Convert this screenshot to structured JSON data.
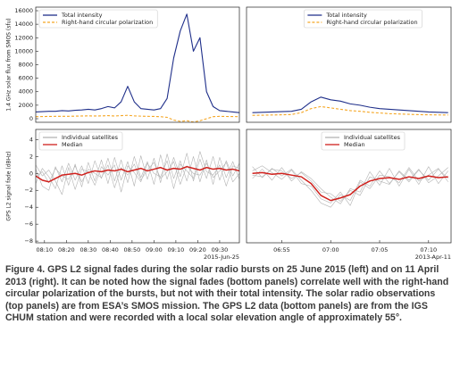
{
  "chart_data": [
    {
      "type": "line",
      "ylabel": "1.4 GHz solar flux from SMOS (sfu)",
      "x": [
        486,
        489,
        492,
        495,
        498,
        501,
        504,
        507,
        510,
        513,
        516,
        519,
        522,
        525,
        528,
        531,
        534,
        537,
        540,
        543,
        546,
        549,
        552,
        555,
        558,
        561,
        564,
        567,
        570,
        573,
        576,
        579
      ],
      "xlim": [
        486,
        579
      ],
      "ylim": [
        -530,
        16530
      ],
      "yticks": [
        0,
        2000,
        4000,
        6000,
        8000,
        10000,
        12000,
        14000,
        16000
      ],
      "legend_loc": "upper left",
      "series": [
        {
          "name": "Total intensity",
          "color": "#1f2f8a",
          "linestyle": "solid",
          "values": [
            1000,
            1050,
            1100,
            1100,
            1200,
            1150,
            1250,
            1300,
            1400,
            1300,
            1500,
            1800,
            1600,
            2500,
            4800,
            2500,
            1500,
            1400,
            1300,
            1500,
            3000,
            9000,
            13000,
            15500,
            10000,
            12000,
            4000,
            1800,
            1200,
            1100,
            1000,
            900
          ]
        },
        {
          "name": "Right-hand circular polarization",
          "color": "#f5a623",
          "linestyle": "dashed",
          "values": [
            300,
            320,
            340,
            350,
            360,
            360,
            380,
            400,
            420,
            400,
            420,
            450,
            400,
            450,
            500,
            420,
            380,
            350,
            340,
            300,
            200,
            -200,
            -400,
            -300,
            -500,
            -300,
            0,
            300,
            350,
            330,
            320,
            300
          ]
        }
      ]
    },
    {
      "type": "line",
      "x": [
        412,
        413,
        414,
        415,
        416,
        417,
        418,
        419,
        420,
        421,
        422,
        423,
        424,
        425,
        426,
        427,
        428,
        429,
        430,
        431,
        432
      ],
      "xlim": [
        411.4,
        432.3
      ],
      "ylim": [
        -530,
        16530
      ],
      "legend_loc": "upper center",
      "series": [
        {
          "name": "Total intensity",
          "color": "#1f2f8a",
          "linestyle": "solid",
          "values": [
            900,
            950,
            1000,
            1050,
            1100,
            1400,
            2500,
            3200,
            2800,
            2600,
            2200,
            2000,
            1700,
            1500,
            1400,
            1300,
            1200,
            1100,
            1000,
            950,
            900
          ]
        },
        {
          "name": "Right-hand circular polarization",
          "color": "#f5a623",
          "linestyle": "dashed",
          "values": [
            500,
            520,
            550,
            580,
            620,
            900,
            1500,
            1800,
            1600,
            1400,
            1200,
            1100,
            950,
            850,
            750,
            700,
            650,
            600,
            580,
            560,
            550
          ]
        }
      ]
    },
    {
      "type": "line",
      "ylabel": "GPS L2 signal fade (dBHz)",
      "x": [
        486,
        489,
        492,
        495,
        498,
        501,
        504,
        507,
        510,
        513,
        516,
        519,
        522,
        525,
        528,
        531,
        534,
        537,
        540,
        543,
        546,
        549,
        552,
        555,
        558,
        561,
        564,
        567,
        570,
        573,
        576,
        579
      ],
      "xlim": [
        486,
        579
      ],
      "ylim": [
        -8.2,
        5.2
      ],
      "yticks": [
        {
          "value": -8,
          "label": "−8"
        },
        {
          "value": -6,
          "label": "−6"
        },
        {
          "value": -4,
          "label": "−4"
        },
        {
          "value": -2,
          "label": "−2"
        },
        0,
        2,
        4
      ],
      "xticks": [
        {
          "value": 490,
          "label": "08:10"
        },
        {
          "value": 500,
          "label": "08:20"
        },
        {
          "value": 510,
          "label": "08:30"
        },
        {
          "value": 520,
          "label": "08:40"
        },
        {
          "value": 530,
          "label": "08:50"
        },
        {
          "value": 540,
          "label": "09:00"
        },
        {
          "value": 550,
          "label": "09:10"
        },
        {
          "value": 560,
          "label": "09:20"
        },
        {
          "value": 570,
          "label": "09:30"
        }
      ],
      "x_offset_label": "2015-Jun-25",
      "legend_loc": "upper left",
      "series": [
        {
          "name": "Individual satellites",
          "color": "#b3b3b3",
          "linestyle": "solid",
          "values": [
            0.5,
            -1.5,
            -2.0,
            0.8,
            -1.0,
            1.2,
            -0.8,
            0.9,
            -1.2,
            1.5,
            -0.6,
            1.8,
            -0.9,
            1.6,
            -1.1,
            2.0,
            -0.5,
            1.4,
            -1.3,
            2.2,
            -0.7,
            1.9,
            -0.4,
            2.4,
            -0.9,
            1.7,
            -0.6,
            2.0,
            -0.8,
            1.5,
            -0.3,
            1.2
          ]
        },
        {
          "color": "#b3b3b3",
          "linestyle": "solid",
          "values": [
            -1.2,
            0.6,
            -0.4,
            -1.8,
            0.9,
            -1.4,
            1.1,
            -1.6,
            1.3,
            -0.9,
            1.6,
            -1.2,
            1.9,
            -0.8,
            1.4,
            -1.5,
            2.1,
            -0.7,
            1.8,
            -1.1,
            2.3,
            -0.6,
            1.5,
            -0.9,
            2.0,
            -1.0,
            1.6,
            -1.3,
            1.9,
            -0.5,
            1.4,
            -0.7
          ]
        },
        {
          "color": "#b3b3b3",
          "linestyle": "solid",
          "values": [
            1.0,
            -0.3,
            0.4,
            -0.9,
            -2.5,
            0.7,
            -1.9,
            0.5,
            0.2,
            -1.4,
            0.8,
            -0.2,
            1.0,
            -2.2,
            0.9,
            0.1,
            -1.0,
            1.2,
            0.0,
            -0.4,
            1.5,
            -1.8,
            1.1,
            0.3,
            -0.6,
            2.6,
            0.2,
            -0.2,
            1.0,
            -1.5,
            0.9,
            0.6
          ]
        },
        {
          "color": "#b3b3b3",
          "linestyle": "solid",
          "values": [
            -0.4,
            0.2,
            -1.1,
            0.6,
            -0.3,
            -0.7,
            0.9,
            -1.0,
            0.5,
            0.0,
            -0.5,
            1.0,
            -1.7,
            0.7,
            -0.2,
            1.1,
            -0.8,
            0.4,
            1.3,
            -0.6,
            0.2,
            1.4,
            -1.3,
            0.9,
            0.0,
            -0.2,
            1.2,
            -0.5,
            0.3,
            1.3,
            -1.0,
            0.0
          ]
        },
        {
          "name": "Median",
          "color": "#d0201c",
          "linestyle": "solid",
          "values": [
            -0.3,
            -0.8,
            -1.0,
            -0.6,
            -0.2,
            -0.1,
            0.0,
            -0.2,
            0.1,
            0.3,
            0.2,
            0.4,
            0.3,
            0.5,
            0.2,
            0.4,
            0.6,
            0.3,
            0.5,
            0.7,
            0.4,
            0.6,
            0.5,
            0.8,
            0.6,
            0.4,
            0.7,
            0.5,
            0.6,
            0.4,
            0.5,
            0.3
          ]
        }
      ]
    },
    {
      "type": "line",
      "x": [
        412,
        413,
        414,
        415,
        416,
        417,
        418,
        419,
        420,
        421,
        422,
        423,
        424,
        425,
        426,
        427,
        428,
        429,
        430,
        431,
        432
      ],
      "xlim": [
        411.4,
        432.3
      ],
      "ylim": [
        -8.2,
        5.2
      ],
      "xticks": [
        {
          "value": 415,
          "label": "06:55"
        },
        {
          "value": 420,
          "label": "07:00"
        },
        {
          "value": 425,
          "label": "07:05"
        },
        {
          "value": 430,
          "label": "07:10"
        }
      ],
      "x_offset_label": "2013-Apr-11",
      "legend_loc": "upper center",
      "series": [
        {
          "name": "Individual satellites",
          "color": "#b3b3b3",
          "linestyle": "solid",
          "values": [
            0.8,
            -0.5,
            0.6,
            -0.3,
            0.5,
            -0.8,
            -2.0,
            -3.5,
            -4.0,
            -2.5,
            -3.2,
            -0.8,
            -1.5,
            0.3,
            -1.2,
            0.2,
            -1.0,
            0.4,
            -0.8,
            0.5,
            -0.6
          ]
        },
        {
          "color": "#b3b3b3",
          "linestyle": "solid",
          "values": [
            -0.6,
            0.5,
            -0.8,
            0.7,
            -0.9,
            0.2,
            -0.6,
            -1.8,
            -2.8,
            -3.6,
            -1.8,
            -2.2,
            0.2,
            -1.4,
            0.6,
            -1.5,
            0.5,
            -1.3,
            0.8,
            -1.2,
            0.3
          ]
        },
        {
          "color": "#b3b3b3",
          "linestyle": "solid",
          "values": [
            0.3,
            0.9,
            0.1,
            -0.7,
            0.4,
            -1.2,
            -1.5,
            -3.0,
            -3.5,
            -2.2,
            -3.8,
            -1.0,
            -1.8,
            -0.2,
            -0.4,
            -1.1,
            0.7,
            -0.9,
            -0.2,
            0.6,
            -1.0
          ]
        },
        {
          "color": "#b3b3b3",
          "linestyle": "solid",
          "values": [
            -0.2,
            -0.4,
            0.5,
            0.3,
            -0.6,
            0.1,
            -0.9,
            -2.2,
            -2.4,
            -3.3,
            -2.0,
            -2.6,
            -0.4,
            -0.9,
            -1.3,
            0.3,
            -0.8,
            0.5,
            -1.1,
            -0.3,
            0.7
          ]
        },
        {
          "name": "Median",
          "color": "#d0201c",
          "linestyle": "solid",
          "values": [
            0,
            0.1,
            -0.1,
            0.0,
            -0.2,
            -0.4,
            -1.2,
            -2.6,
            -3.2,
            -2.9,
            -2.5,
            -1.5,
            -0.9,
            -0.6,
            -0.5,
            -0.7,
            -0.4,
            -0.6,
            -0.3,
            -0.5,
            -0.4
          ]
        }
      ]
    }
  ],
  "caption": {
    "label": "Figure 4.",
    "text": "GPS L2 signal fades during the solar radio bursts on 25 June 2015 (left) and on 11 April 2013 (right). It can be noted how the signal fades (bottom panels) correlate well with the right-hand circular polarization of the bursts, but not with their total intensity. The solar radio observations (top panels) are from ESA’s SMOS mission. The GPS L2 data (bottom panels) are from the IGS CHUM station and were recorded with a local solar elevation angle of approximately 55°."
  }
}
